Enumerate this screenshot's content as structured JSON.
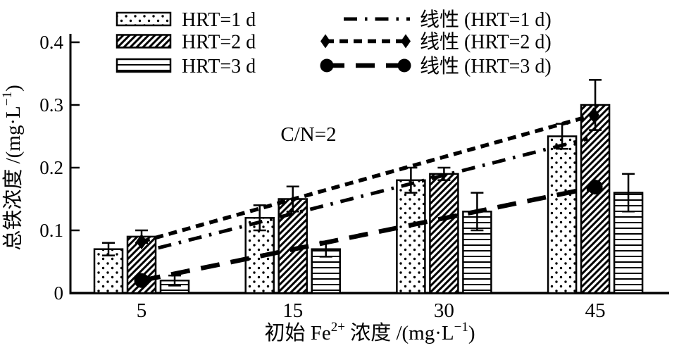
{
  "figure": {
    "background": "#ffffff",
    "ink": "#000000"
  },
  "chart_data": {
    "type": "bar",
    "title": "",
    "annotation": "C/N=2",
    "categories": [
      "5",
      "15",
      "30",
      "45"
    ],
    "xlabel": "初始 Fe2+ 浓度 /(mg·L-1)",
    "xlabel_parts": [
      {
        "t": "初始 Fe"
      },
      {
        "t": "2+",
        "sup": true
      },
      {
        "t": " 浓度 /(mg·L"
      },
      {
        "t": "−1",
        "sup": true
      },
      {
        "t": ")"
      }
    ],
    "ylabel": "总铁浓度 /(mg·L-1)",
    "ylabel_parts": [
      {
        "t": "总铁浓度 /(mg·L"
      },
      {
        "t": "−1",
        "sup": true
      },
      {
        "t": ")"
      }
    ],
    "ylim": [
      0,
      0.4
    ],
    "yticks": [
      0,
      0.1,
      0.2,
      0.3,
      0.4
    ],
    "ytick_labels": [
      "0",
      "0.1",
      "0.2",
      "0.3",
      "0.4"
    ],
    "grid": false,
    "legend_position": "top",
    "series": [
      {
        "name": "HRT=1 d",
        "pattern": "dots",
        "values": [
          0.07,
          0.12,
          0.18,
          0.25
        ],
        "errors": [
          0.01,
          0.02,
          0.02,
          0.02
        ]
      },
      {
        "name": "HRT=2 d",
        "pattern": "diagonal-hatch",
        "values": [
          0.09,
          0.15,
          0.19,
          0.3
        ],
        "errors": [
          0.01,
          0.02,
          0.01,
          0.04
        ]
      },
      {
        "name": "HRT=3 d",
        "pattern": "horizontal-lines",
        "values": [
          0.02,
          0.07,
          0.13,
          0.16
        ],
        "errors": [
          0.008,
          0.012,
          0.03,
          0.03
        ]
      }
    ],
    "trendlines": [
      {
        "name": "线性 (HRT=1 d)",
        "style": "dash-dot",
        "marker": "none",
        "x1": 0.11,
        "v1": 0.072,
        "x2": 2.95,
        "v2": 0.246
      },
      {
        "name": "线性 (HRT=2 d)",
        "style": "dashed",
        "marker": "diamond",
        "x1": 0.0,
        "v1": 0.082,
        "x2": 2.99,
        "v2": 0.284
      },
      {
        "name": "线性 (HRT=3 d)",
        "style": "long-dash",
        "marker": "circle",
        "x1": 0.0,
        "v1": 0.02,
        "x2": 3.0,
        "v2": 0.169
      }
    ]
  }
}
